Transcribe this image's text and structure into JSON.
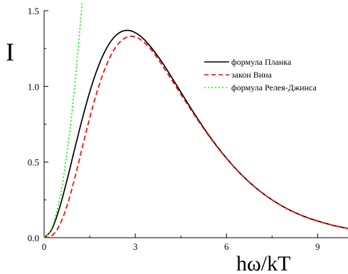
{
  "chart_data": {
    "type": "line",
    "xlabel": "hω/kT",
    "ylabel": "I",
    "xlim": [
      0,
      10
    ],
    "ylim": [
      0,
      1.5
    ],
    "x_ticks": [
      0,
      3,
      6,
      9
    ],
    "y_ticks": [
      0.0,
      0.5,
      1.0,
      1.5
    ],
    "x_tick_labels": [
      "0",
      "3",
      "6",
      "9"
    ],
    "y_tick_labels": [
      "0.0",
      "0.5",
      "1.0",
      "1.5"
    ],
    "grid": false,
    "legend_position": "right",
    "series": [
      {
        "name": "формула Планка",
        "color": "#000000",
        "dash": "solid",
        "x": [
          0,
          0.25,
          0.5,
          0.75,
          1.0,
          1.25,
          1.5,
          1.75,
          2.0,
          2.25,
          2.5,
          2.75,
          3.0,
          3.25,
          3.5,
          3.75,
          4.0,
          4.5,
          5.0,
          5.5,
          6.0,
          6.5,
          7.0,
          7.5,
          8.0,
          8.5,
          9.0,
          9.5,
          10.0
        ],
        "y": [
          0.0,
          0.054,
          0.193,
          0.378,
          0.582,
          0.781,
          0.962,
          1.114,
          1.231,
          1.312,
          1.357,
          1.37,
          1.355,
          1.318,
          1.263,
          1.197,
          1.123,
          0.962,
          0.802,
          0.655,
          0.526,
          0.415,
          0.324,
          0.25,
          0.191,
          0.145,
          0.11,
          0.082,
          0.061
        ]
      },
      {
        "name": "закон Вина",
        "color": "#ff0000",
        "dash": "dashed",
        "x": [
          0,
          0.25,
          0.5,
          0.75,
          1.0,
          1.25,
          1.5,
          1.75,
          2.0,
          2.25,
          2.5,
          2.75,
          3.0,
          3.25,
          3.5,
          3.75,
          4.0,
          4.5,
          5.0,
          5.5,
          6.0,
          6.5,
          7.0,
          7.5,
          8.0,
          8.5,
          9.0,
          9.5,
          10.0
        ],
        "y": [
          0.0,
          0.012,
          0.08,
          0.209,
          0.387,
          0.591,
          0.791,
          0.97,
          1.116,
          1.225,
          1.294,
          1.327,
          1.327,
          1.298,
          1.248,
          1.18,
          1.104,
          0.948,
          0.794,
          0.651,
          0.524,
          0.415,
          0.324,
          0.25,
          0.191,
          0.145,
          0.11,
          0.082,
          0.061
        ]
      },
      {
        "name": "формула Релея-Джинса",
        "color": "#00ff00",
        "dash": "dotted",
        "x": [
          0,
          0.25,
          0.5,
          0.75,
          1.0,
          1.25
        ],
        "y": [
          0.0,
          0.062,
          0.248,
          0.558,
          0.992,
          1.55
        ]
      }
    ]
  }
}
